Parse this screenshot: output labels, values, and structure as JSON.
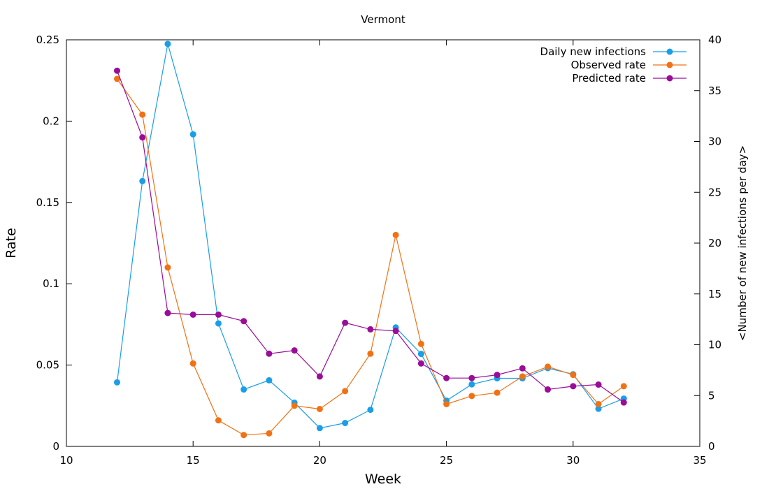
{
  "chart_data": {
    "type": "line",
    "title": "Vermont",
    "xlabel": "Week",
    "ylabel": "Rate",
    "y2label": "<Number of new infections per day>",
    "xlim": [
      10,
      35
    ],
    "ylim": [
      0,
      0.25
    ],
    "y2lim": [
      0,
      40
    ],
    "x_ticks": [
      "10",
      "15",
      "20",
      "25",
      "30",
      "35"
    ],
    "y_ticks": [
      "0",
      "0.05",
      "0.1",
      "0.15",
      "0.2",
      "0.25"
    ],
    "y2_ticks": [
      "0",
      "5",
      "10",
      "15",
      "20",
      "25",
      "30",
      "35",
      "40"
    ],
    "grid": false,
    "legend_position": "top-right",
    "x": [
      12,
      13,
      14,
      15,
      16,
      17,
      18,
      19,
      20,
      21,
      22,
      23,
      24,
      25,
      26,
      27,
      28,
      29,
      30,
      31,
      32
    ],
    "series": [
      {
        "name": "Daily new infections",
        "axis": "right",
        "color": "#1a9ee8",
        "values": [
          6.3,
          26.1,
          39.6,
          30.7,
          12.1,
          5.6,
          6.5,
          4.3,
          1.8,
          2.3,
          3.6,
          11.7,
          9.1,
          4.5,
          6.1,
          6.7,
          6.7,
          7.7,
          7.1,
          3.7,
          4.7
        ]
      },
      {
        "name": "Observed rate",
        "axis": "left",
        "color": "#f07214",
        "values": [
          0.226,
          0.204,
          0.11,
          0.051,
          0.016,
          0.007,
          0.008,
          0.025,
          0.023,
          0.034,
          0.057,
          0.13,
          0.063,
          0.026,
          0.031,
          0.033,
          0.043,
          0.049,
          0.044,
          0.026,
          0.037
        ]
      },
      {
        "name": "Predicted rate",
        "axis": "left",
        "color": "#990d99",
        "values": [
          0.231,
          0.19,
          0.082,
          0.081,
          0.081,
          0.077,
          0.057,
          0.059,
          0.043,
          0.076,
          0.072,
          0.071,
          0.051,
          0.042,
          0.042,
          0.044,
          0.048,
          0.035,
          0.037,
          0.038,
          0.027
        ]
      }
    ]
  }
}
